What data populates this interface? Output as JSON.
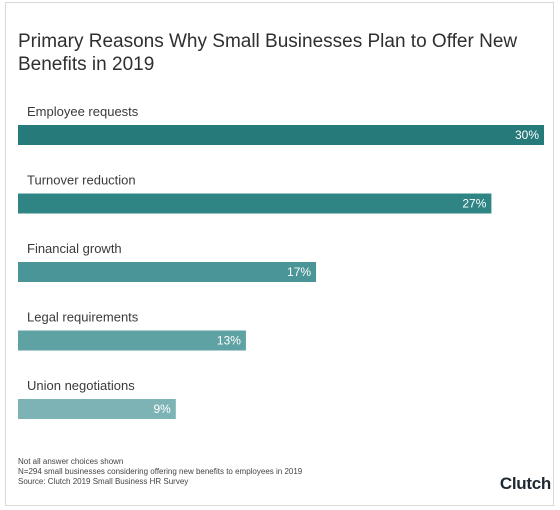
{
  "chart_data": {
    "type": "bar",
    "orientation": "horizontal",
    "title": "Primary Reasons Why Small Businesses Plan to Offer New Benefits in 2019",
    "categories": [
      "Employee requests",
      "Turnover reduction",
      "Financial growth",
      "Legal requirements",
      "Union negotiations"
    ],
    "values": [
      30,
      27,
      17,
      13,
      9
    ],
    "data_labels": [
      "30%",
      "27%",
      "17%",
      "13%",
      "9%"
    ],
    "bar_colors": [
      "#267a7a",
      "#2f8484",
      "#4a9597",
      "#5fa2a4",
      "#7db3b5"
    ],
    "xlim": [
      0,
      30
    ],
    "grid": false,
    "legend": "none"
  },
  "footnotes": [
    "Not all answer choices shown",
    "N=294 small businesses considering offering new benefits to employees in 2019",
    "Source: Clutch 2019 Small Business HR Survey"
  ],
  "brand": {
    "logo_text": "Clutch"
  }
}
